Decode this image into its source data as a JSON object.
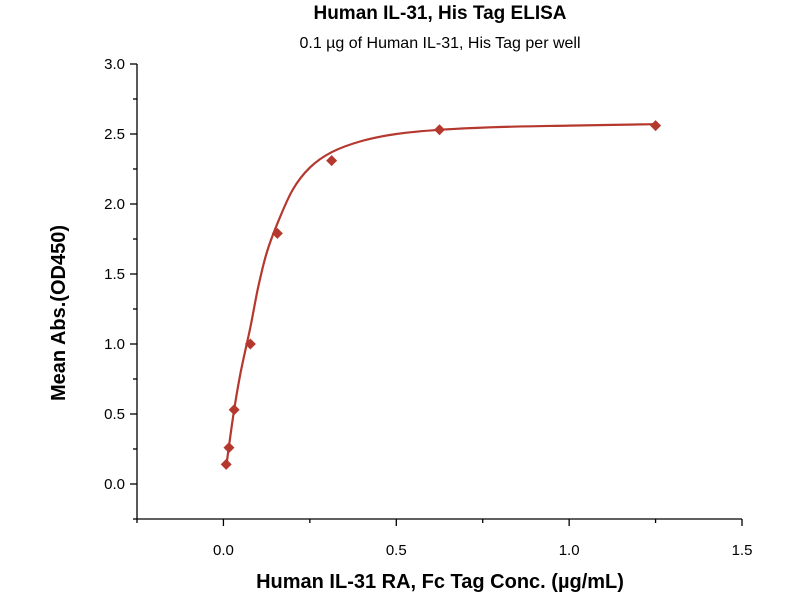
{
  "chart_data": {
    "type": "scatter",
    "title": "Human IL-31, His Tag ELISA",
    "subtitle": "0.1 µg of Human IL-31, His Tag per well",
    "xlabel": "Human IL-31 RA, Fc Tag Conc. (µg/mL)",
    "ylabel": "Mean Abs.(OD450)",
    "xlim": [
      -0.25,
      1.5
    ],
    "ylim": [
      -0.25,
      3.0
    ],
    "xticks": [
      "0.0",
      "0.5",
      "1.0",
      "1.5"
    ],
    "yticks": [
      "0.0",
      "0.5",
      "1.0",
      "1.5",
      "2.0",
      "2.5",
      "3.0"
    ],
    "grid": false,
    "legend": "none",
    "marker": "diamond",
    "color": "#b5382f",
    "series": [
      {
        "x": [
          0.008,
          0.016,
          0.031,
          0.078,
          0.156,
          0.313,
          0.625,
          1.25
        ],
        "y": [
          0.14,
          0.26,
          0.53,
          1.0,
          1.79,
          2.31,
          2.53,
          2.56
        ]
      }
    ],
    "fit_curve": {
      "x": [
        0.008,
        0.016,
        0.031,
        0.05,
        0.078,
        0.1,
        0.125,
        0.156,
        0.2,
        0.25,
        0.313,
        0.4,
        0.5,
        0.625,
        0.8,
        1.0,
        1.25
      ],
      "y": [
        0.12,
        0.27,
        0.53,
        0.8,
        1.12,
        1.4,
        1.65,
        1.86,
        2.1,
        2.26,
        2.37,
        2.45,
        2.5,
        2.53,
        2.55,
        2.56,
        2.57
      ]
    }
  }
}
